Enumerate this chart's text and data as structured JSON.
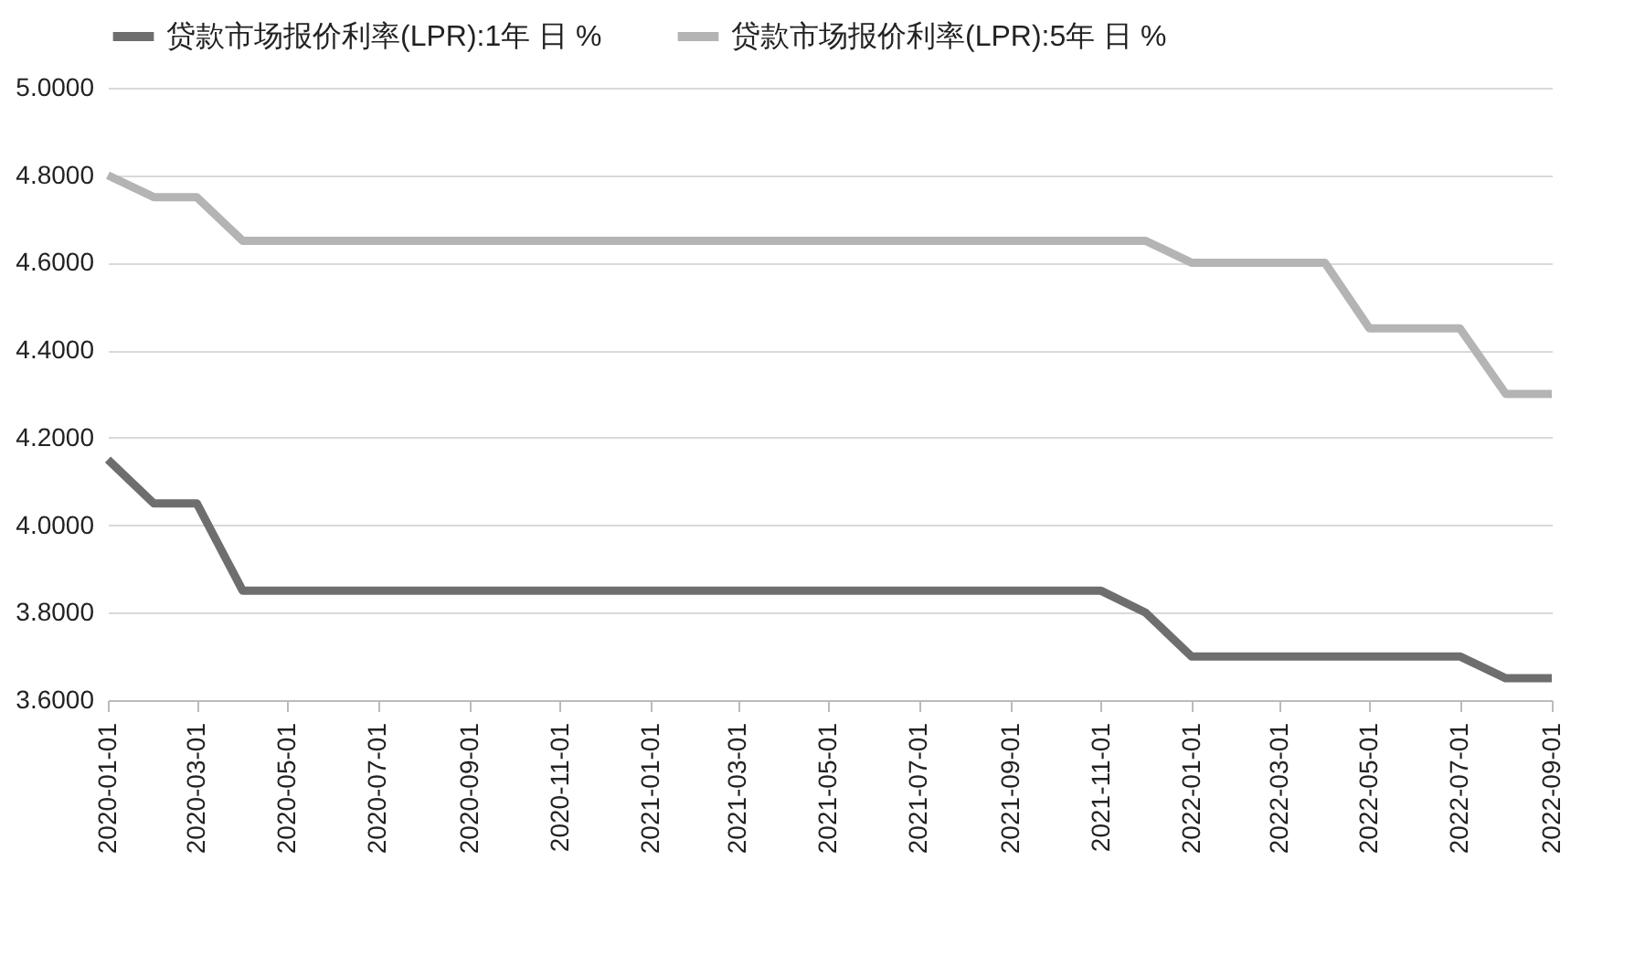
{
  "chart_data": {
    "type": "line",
    "x": [
      "2020-01",
      "2020-02",
      "2020-03",
      "2020-04",
      "2020-05",
      "2020-06",
      "2020-07",
      "2020-08",
      "2020-09",
      "2020-10",
      "2020-11",
      "2020-12",
      "2021-01",
      "2021-02",
      "2021-03",
      "2021-04",
      "2021-05",
      "2021-06",
      "2021-07",
      "2021-08",
      "2021-09",
      "2021-10",
      "2021-11",
      "2021-12",
      "2022-01",
      "2022-02",
      "2022-03",
      "2022-04",
      "2022-05",
      "2022-06",
      "2022-07",
      "2022-08",
      "2022-09"
    ],
    "series": [
      {
        "name": "贷款市场报价利率(LPR):1年 日 %",
        "color": "#6e6e6e",
        "values": [
          4.15,
          4.05,
          4.05,
          3.85,
          3.85,
          3.85,
          3.85,
          3.85,
          3.85,
          3.85,
          3.85,
          3.85,
          3.85,
          3.85,
          3.85,
          3.85,
          3.85,
          3.85,
          3.85,
          3.85,
          3.85,
          3.85,
          3.85,
          3.8,
          3.7,
          3.7,
          3.7,
          3.7,
          3.7,
          3.7,
          3.7,
          3.65,
          3.65
        ]
      },
      {
        "name": "贷款市场报价利率(LPR):5年 日 %",
        "color": "#b4b4b4",
        "values": [
          4.8,
          4.75,
          4.75,
          4.65,
          4.65,
          4.65,
          4.65,
          4.65,
          4.65,
          4.65,
          4.65,
          4.65,
          4.65,
          4.65,
          4.65,
          4.65,
          4.65,
          4.65,
          4.65,
          4.65,
          4.65,
          4.65,
          4.65,
          4.65,
          4.6,
          4.6,
          4.6,
          4.6,
          4.45,
          4.45,
          4.45,
          4.3,
          4.3
        ]
      }
    ],
    "xlim": [
      "2020-01",
      "2022-09"
    ],
    "xticks": [
      {
        "value": "2020-01",
        "label": "2020-01-01"
      },
      {
        "value": "2020-03",
        "label": "2020-03-01"
      },
      {
        "value": "2020-05",
        "label": "2020-05-01"
      },
      {
        "value": "2020-07",
        "label": "2020-07-01"
      },
      {
        "value": "2020-09",
        "label": "2020-09-01"
      },
      {
        "value": "2020-11",
        "label": "2020-11-01"
      },
      {
        "value": "2021-01",
        "label": "2021-01-01"
      },
      {
        "value": "2021-03",
        "label": "2021-03-01"
      },
      {
        "value": "2021-05",
        "label": "2021-05-01"
      },
      {
        "value": "2021-07",
        "label": "2021-07-01"
      },
      {
        "value": "2021-09",
        "label": "2021-09-01"
      },
      {
        "value": "2021-11",
        "label": "2021-11-01"
      },
      {
        "value": "2022-01",
        "label": "2022-01-01"
      },
      {
        "value": "2022-03",
        "label": "2022-03-01"
      },
      {
        "value": "2022-05",
        "label": "2022-05-01"
      },
      {
        "value": "2022-07",
        "label": "2022-07-01"
      },
      {
        "value": "2022-09",
        "label": "2022-09-01"
      }
    ],
    "ylim": [
      3.6,
      5.0
    ],
    "yticks": [
      {
        "value": 3.6,
        "label": "3.6000"
      },
      {
        "value": 3.8,
        "label": "3.8000"
      },
      {
        "value": 4.0,
        "label": "4.0000"
      },
      {
        "value": 4.2,
        "label": "4.2000"
      },
      {
        "value": 4.4,
        "label": "4.4000"
      },
      {
        "value": 4.6,
        "label": "4.6000"
      },
      {
        "value": 4.8,
        "label": "4.8000"
      },
      {
        "value": 5.0,
        "label": "5.0000"
      }
    ],
    "grid": "y",
    "legend": "top",
    "marker": "none",
    "line_style": "solid"
  }
}
